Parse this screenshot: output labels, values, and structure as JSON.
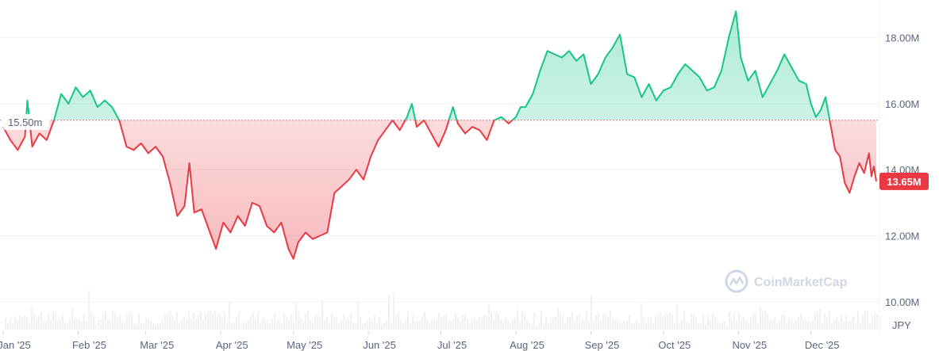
{
  "chart_data": {
    "type": "area",
    "currency": "JPY",
    "baseline": {
      "value": 15.5,
      "label": "15.50m"
    },
    "current": {
      "value": 13.65,
      "label": "13.65M"
    },
    "y_ticks": [
      {
        "value": 10,
        "label": "10.00M"
      },
      {
        "value": 12,
        "label": "12.00M"
      },
      {
        "value": 14,
        "label": "14.00M"
      },
      {
        "value": 16,
        "label": "16.00M"
      },
      {
        "value": 18,
        "label": "18.00M"
      }
    ],
    "ylim": [
      9.3,
      19.0
    ],
    "xlim": [
      "2025-01-01",
      "2025-12-29"
    ],
    "x_ticks": [
      {
        "date": "2025-01-01",
        "label": "Jan '25"
      },
      {
        "date": "2025-02-01",
        "label": "Feb '25"
      },
      {
        "date": "2025-03-01",
        "label": "Mar '25"
      },
      {
        "date": "2025-04-01",
        "label": "Apr '25"
      },
      {
        "date": "2025-05-01",
        "label": "May '25"
      },
      {
        "date": "2025-06-01",
        "label": "Jun '25"
      },
      {
        "date": "2025-07-01",
        "label": "Jul '25"
      },
      {
        "date": "2025-08-01",
        "label": "Aug '25"
      },
      {
        "date": "2025-09-01",
        "label": "Sep '25"
      },
      {
        "date": "2025-10-01",
        "label": "Oct '25"
      },
      {
        "date": "2025-11-01",
        "label": "Nov '25"
      },
      {
        "date": "2025-12-01",
        "label": "Dec '25"
      }
    ],
    "series": [
      {
        "points": [
          [
            "2025-01-01",
            15.3
          ],
          [
            "2025-01-04",
            14.9
          ],
          [
            "2025-01-07",
            14.6
          ],
          [
            "2025-01-10",
            15.0
          ],
          [
            "2025-01-11",
            16.1
          ],
          [
            "2025-01-13",
            14.7
          ],
          [
            "2025-01-16",
            15.1
          ],
          [
            "2025-01-19",
            14.9
          ],
          [
            "2025-01-22",
            15.5
          ],
          [
            "2025-01-25",
            16.3
          ],
          [
            "2025-01-28",
            16.0
          ],
          [
            "2025-01-31",
            16.5
          ],
          [
            "2025-02-03",
            16.2
          ],
          [
            "2025-02-06",
            16.4
          ],
          [
            "2025-02-09",
            15.9
          ],
          [
            "2025-02-12",
            16.1
          ],
          [
            "2025-02-15",
            15.9
          ],
          [
            "2025-02-18",
            15.5
          ],
          [
            "2025-02-21",
            14.7
          ],
          [
            "2025-02-24",
            14.6
          ],
          [
            "2025-02-27",
            14.8
          ],
          [
            "2025-03-02",
            14.5
          ],
          [
            "2025-03-05",
            14.7
          ],
          [
            "2025-03-08",
            14.4
          ],
          [
            "2025-03-11",
            13.6
          ],
          [
            "2025-03-14",
            12.6
          ],
          [
            "2025-03-17",
            12.9
          ],
          [
            "2025-03-19",
            14.2
          ],
          [
            "2025-03-21",
            12.7
          ],
          [
            "2025-03-24",
            12.8
          ],
          [
            "2025-03-27",
            12.2
          ],
          [
            "2025-03-30",
            11.6
          ],
          [
            "2025-04-02",
            12.4
          ],
          [
            "2025-04-05",
            12.1
          ],
          [
            "2025-04-08",
            12.6
          ],
          [
            "2025-04-11",
            12.3
          ],
          [
            "2025-04-14",
            13.0
          ],
          [
            "2025-04-17",
            12.9
          ],
          [
            "2025-04-20",
            12.3
          ],
          [
            "2025-04-23",
            12.1
          ],
          [
            "2025-04-26",
            12.4
          ],
          [
            "2025-04-29",
            11.6
          ],
          [
            "2025-05-01",
            11.3
          ],
          [
            "2025-05-03",
            11.8
          ],
          [
            "2025-05-06",
            12.1
          ],
          [
            "2025-05-09",
            11.9
          ],
          [
            "2025-05-12",
            12.0
          ],
          [
            "2025-05-15",
            12.1
          ],
          [
            "2025-05-18",
            13.3
          ],
          [
            "2025-05-21",
            13.5
          ],
          [
            "2025-05-24",
            13.7
          ],
          [
            "2025-05-27",
            14.0
          ],
          [
            "2025-05-30",
            13.7
          ],
          [
            "2025-06-02",
            14.4
          ],
          [
            "2025-06-05",
            14.9
          ],
          [
            "2025-06-08",
            15.2
          ],
          [
            "2025-06-11",
            15.5
          ],
          [
            "2025-06-14",
            15.2
          ],
          [
            "2025-06-17",
            15.6
          ],
          [
            "2025-06-19",
            16.0
          ],
          [
            "2025-06-21",
            15.3
          ],
          [
            "2025-06-24",
            15.5
          ],
          [
            "2025-06-27",
            15.1
          ],
          [
            "2025-06-30",
            14.7
          ],
          [
            "2025-07-03",
            15.2
          ],
          [
            "2025-07-06",
            15.9
          ],
          [
            "2025-07-08",
            15.4
          ],
          [
            "2025-07-11",
            15.1
          ],
          [
            "2025-07-14",
            15.3
          ],
          [
            "2025-07-17",
            15.2
          ],
          [
            "2025-07-20",
            14.9
          ],
          [
            "2025-07-23",
            15.5
          ],
          [
            "2025-07-26",
            15.6
          ],
          [
            "2025-07-29",
            15.4
          ],
          [
            "2025-08-01",
            15.6
          ],
          [
            "2025-08-03",
            15.9
          ],
          [
            "2025-08-05",
            15.9
          ],
          [
            "2025-08-08",
            16.3
          ],
          [
            "2025-08-11",
            17.0
          ],
          [
            "2025-08-14",
            17.6
          ],
          [
            "2025-08-17",
            17.5
          ],
          [
            "2025-08-20",
            17.4
          ],
          [
            "2025-08-23",
            17.6
          ],
          [
            "2025-08-26",
            17.3
          ],
          [
            "2025-08-29",
            17.5
          ],
          [
            "2025-09-01",
            16.6
          ],
          [
            "2025-09-04",
            16.9
          ],
          [
            "2025-09-07",
            17.4
          ],
          [
            "2025-09-10",
            17.7
          ],
          [
            "2025-09-13",
            18.1
          ],
          [
            "2025-09-16",
            16.9
          ],
          [
            "2025-09-19",
            16.8
          ],
          [
            "2025-09-22",
            16.2
          ],
          [
            "2025-09-25",
            16.6
          ],
          [
            "2025-09-28",
            16.1
          ],
          [
            "2025-10-01",
            16.4
          ],
          [
            "2025-10-04",
            16.5
          ],
          [
            "2025-10-07",
            16.9
          ],
          [
            "2025-10-10",
            17.2
          ],
          [
            "2025-10-13",
            17.0
          ],
          [
            "2025-10-16",
            16.8
          ],
          [
            "2025-10-19",
            16.4
          ],
          [
            "2025-10-22",
            16.5
          ],
          [
            "2025-10-25",
            17.0
          ],
          [
            "2025-10-28",
            18.0
          ],
          [
            "2025-10-31",
            18.8
          ],
          [
            "2025-11-02",
            17.4
          ],
          [
            "2025-11-05",
            16.7
          ],
          [
            "2025-11-08",
            17.0
          ],
          [
            "2025-11-11",
            16.2
          ],
          [
            "2025-11-14",
            16.6
          ],
          [
            "2025-11-17",
            17.0
          ],
          [
            "2025-11-20",
            17.5
          ],
          [
            "2025-11-23",
            17.1
          ],
          [
            "2025-11-26",
            16.7
          ],
          [
            "2025-11-29",
            16.6
          ],
          [
            "2025-12-01",
            16.0
          ],
          [
            "2025-12-03",
            15.6
          ],
          [
            "2025-12-05",
            15.8
          ],
          [
            "2025-12-07",
            16.2
          ],
          [
            "2025-12-09",
            15.4
          ],
          [
            "2025-12-11",
            14.6
          ],
          [
            "2025-12-13",
            14.4
          ],
          [
            "2025-12-15",
            13.6
          ],
          [
            "2025-12-17",
            13.3
          ],
          [
            "2025-12-19",
            13.8
          ],
          [
            "2025-12-21",
            14.2
          ],
          [
            "2025-12-23",
            13.9
          ],
          [
            "2025-12-25",
            14.5
          ],
          [
            "2025-12-26",
            13.8
          ],
          [
            "2025-12-27",
            14.1
          ],
          [
            "2025-12-28",
            13.65
          ]
        ]
      }
    ],
    "volume_bars": true
  },
  "watermark": "CoinMarketCap",
  "colors": {
    "up_line": "#16c784",
    "down_line": "#ea3943",
    "up_fill": "#16c784",
    "down_fill": "#ea3943",
    "grid": "#eff2f5",
    "axis_text": "#58667e",
    "volume": "#eff2f5"
  }
}
